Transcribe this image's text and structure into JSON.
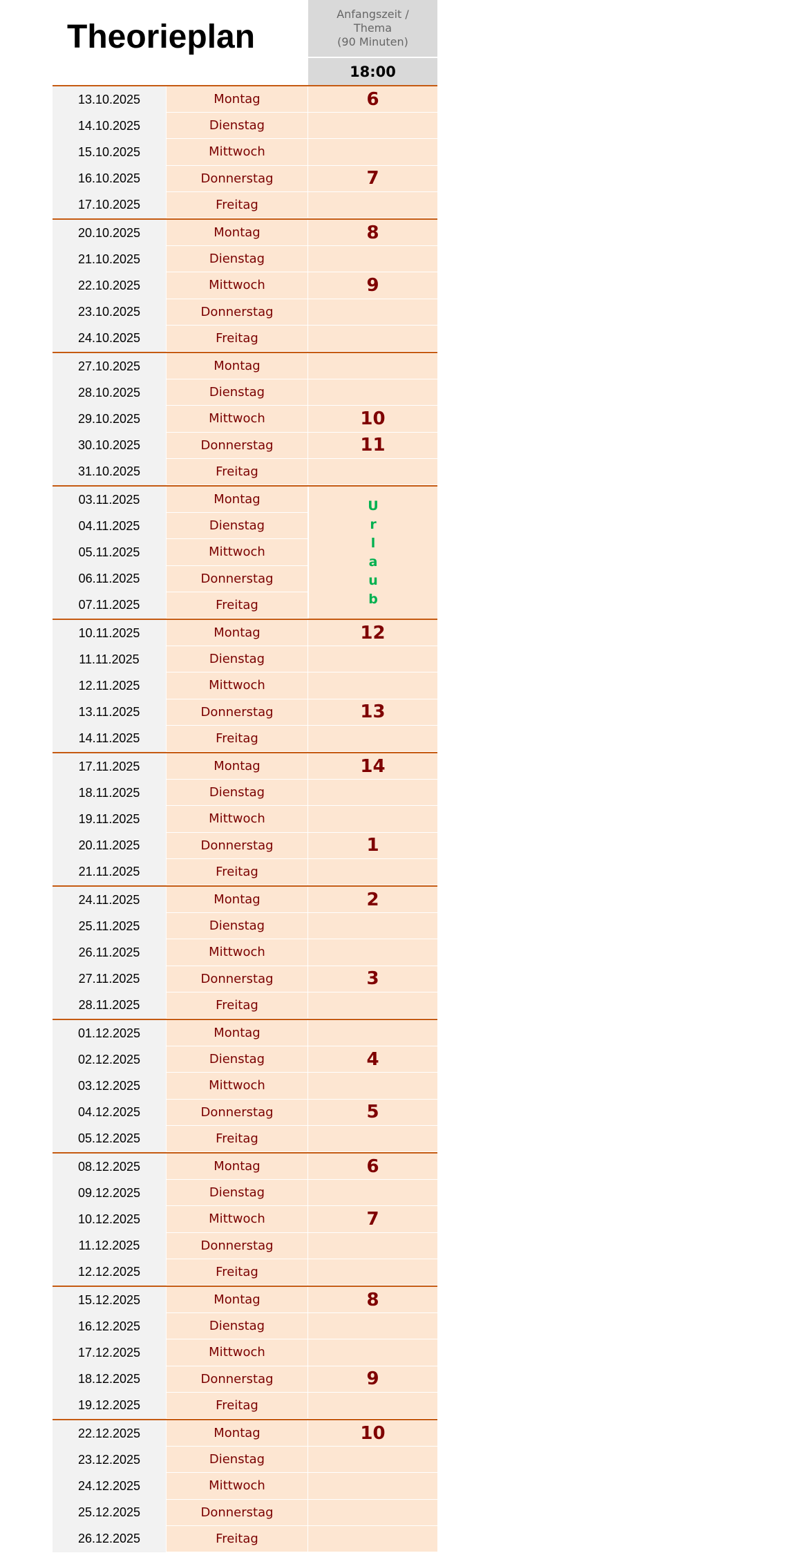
{
  "title": "Theorieplan",
  "header": {
    "column_label": "Anfangszeit /\nThema\n(90 Minuten)",
    "time": "18:00"
  },
  "colors": {
    "border": "#c55a11",
    "day_bg": "#fde6d2",
    "date_bg": "#f2f2f2",
    "text_dark_red": "#7f0000",
    "vacation_green": "#00b050"
  },
  "weeks": [
    {
      "days": [
        {
          "date": "13.10.2025",
          "day": "Montag",
          "topic": "6"
        },
        {
          "date": "14.10.2025",
          "day": "Dienstag",
          "topic": ""
        },
        {
          "date": "15.10.2025",
          "day": "Mittwoch",
          "topic": ""
        },
        {
          "date": "16.10.2025",
          "day": "Donnerstag",
          "topic": "7"
        },
        {
          "date": "17.10.2025",
          "day": "Freitag",
          "topic": ""
        }
      ]
    },
    {
      "days": [
        {
          "date": "20.10.2025",
          "day": "Montag",
          "topic": "8"
        },
        {
          "date": "21.10.2025",
          "day": "Dienstag",
          "topic": ""
        },
        {
          "date": "22.10.2025",
          "day": "Mittwoch",
          "topic": "9"
        },
        {
          "date": "23.10.2025",
          "day": "Donnerstag",
          "topic": ""
        },
        {
          "date": "24.10.2025",
          "day": "Freitag",
          "topic": ""
        }
      ]
    },
    {
      "days": [
        {
          "date": "27.10.2025",
          "day": "Montag",
          "topic": ""
        },
        {
          "date": "28.10.2025",
          "day": "Dienstag",
          "topic": ""
        },
        {
          "date": "29.10.2025",
          "day": "Mittwoch",
          "topic": "10"
        },
        {
          "date": "30.10.2025",
          "day": "Donnerstag",
          "topic": "11"
        },
        {
          "date": "31.10.2025",
          "day": "Freitag",
          "topic": ""
        }
      ]
    },
    {
      "vacation": [
        "U",
        "r",
        "l",
        "a",
        "u",
        "b"
      ],
      "days": [
        {
          "date": "03.11.2025",
          "day": "Montag"
        },
        {
          "date": "04.11.2025",
          "day": "Dienstag"
        },
        {
          "date": "05.11.2025",
          "day": "Mittwoch"
        },
        {
          "date": "06.11.2025",
          "day": "Donnerstag"
        },
        {
          "date": "07.11.2025",
          "day": "Freitag"
        }
      ]
    },
    {
      "days": [
        {
          "date": "10.11.2025",
          "day": "Montag",
          "topic": "12"
        },
        {
          "date": "11.11.2025",
          "day": "Dienstag",
          "topic": ""
        },
        {
          "date": "12.11.2025",
          "day": "Mittwoch",
          "topic": ""
        },
        {
          "date": "13.11.2025",
          "day": "Donnerstag",
          "topic": "13"
        },
        {
          "date": "14.11.2025",
          "day": "Freitag",
          "topic": ""
        }
      ]
    },
    {
      "days": [
        {
          "date": "17.11.2025",
          "day": "Montag",
          "topic": "14"
        },
        {
          "date": "18.11.2025",
          "day": "Dienstag",
          "topic": ""
        },
        {
          "date": "19.11.2025",
          "day": "Mittwoch",
          "topic": ""
        },
        {
          "date": "20.11.2025",
          "day": "Donnerstag",
          "topic": "1"
        },
        {
          "date": "21.11.2025",
          "day": "Freitag",
          "topic": ""
        }
      ]
    },
    {
      "days": [
        {
          "date": "24.11.2025",
          "day": "Montag",
          "topic": "2"
        },
        {
          "date": "25.11.2025",
          "day": "Dienstag",
          "topic": ""
        },
        {
          "date": "26.11.2025",
          "day": "Mittwoch",
          "topic": ""
        },
        {
          "date": "27.11.2025",
          "day": "Donnerstag",
          "topic": "3"
        },
        {
          "date": "28.11.2025",
          "day": "Freitag",
          "topic": ""
        }
      ]
    },
    {
      "days": [
        {
          "date": "01.12.2025",
          "day": "Montag",
          "topic": ""
        },
        {
          "date": "02.12.2025",
          "day": "Dienstag",
          "topic": "4"
        },
        {
          "date": "03.12.2025",
          "day": "Mittwoch",
          "topic": ""
        },
        {
          "date": "04.12.2025",
          "day": "Donnerstag",
          "topic": "5"
        },
        {
          "date": "05.12.2025",
          "day": "Freitag",
          "topic": ""
        }
      ]
    },
    {
      "days": [
        {
          "date": "08.12.2025",
          "day": "Montag",
          "topic": "6"
        },
        {
          "date": "09.12.2025",
          "day": "Dienstag",
          "topic": ""
        },
        {
          "date": "10.12.2025",
          "day": "Mittwoch",
          "topic": "7"
        },
        {
          "date": "11.12.2025",
          "day": "Donnerstag",
          "topic": ""
        },
        {
          "date": "12.12.2025",
          "day": "Freitag",
          "topic": ""
        }
      ]
    },
    {
      "days": [
        {
          "date": "15.12.2025",
          "day": "Montag",
          "topic": "8"
        },
        {
          "date": "16.12.2025",
          "day": "Dienstag",
          "topic": ""
        },
        {
          "date": "17.12.2025",
          "day": "Mittwoch",
          "topic": ""
        },
        {
          "date": "18.12.2025",
          "day": "Donnerstag",
          "topic": "9"
        },
        {
          "date": "19.12.2025",
          "day": "Freitag",
          "topic": ""
        }
      ]
    },
    {
      "days": [
        {
          "date": "22.12.2025",
          "day": "Montag",
          "topic": "10"
        },
        {
          "date": "23.12.2025",
          "day": "Dienstag",
          "topic": ""
        },
        {
          "date": "24.12.2025",
          "day": "Mittwoch",
          "topic": ""
        },
        {
          "date": "25.12.2025",
          "day": "Donnerstag",
          "topic": ""
        },
        {
          "date": "26.12.2025",
          "day": "Freitag",
          "topic": ""
        }
      ]
    }
  ]
}
